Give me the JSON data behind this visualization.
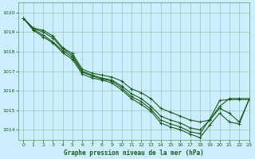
{
  "title": "Graphe pression niveau de la mer (hPa)",
  "bg_color": "#cceeff",
  "grid_color": "#5a9a5a",
  "line_color": "#1a5c1a",
  "label_bg": "#5a9a5a",
  "xlim": [
    -0.5,
    23
  ],
  "ylim": [
    1013.5,
    1020.5
  ],
  "yticks": [
    1014,
    1015,
    1016,
    1017,
    1018,
    1019,
    1020
  ],
  "xticks": [
    0,
    1,
    2,
    3,
    4,
    5,
    6,
    7,
    8,
    9,
    10,
    11,
    12,
    13,
    14,
    15,
    16,
    17,
    18,
    19,
    20,
    21,
    22,
    23
  ],
  "series": [
    [
      1019.7,
      1019.2,
      1019.1,
      1018.8,
      1018.2,
      1017.9,
      1017.1,
      1016.9,
      1016.8,
      1016.7,
      1016.5,
      1016.1,
      1015.9,
      1015.6,
      1015.1,
      1014.9,
      1014.7,
      1014.5,
      1014.4,
      1014.5,
      1015.2,
      1015.6,
      1015.6,
      1015.6
    ],
    [
      1019.7,
      1019.2,
      1019.0,
      1018.7,
      1018.15,
      1017.8,
      1017.0,
      1016.8,
      1016.65,
      1016.55,
      1016.25,
      1015.85,
      1015.6,
      1015.2,
      1014.7,
      1014.5,
      1014.35,
      1014.1,
      1014.0,
      1014.5,
      1015.1,
      1014.85,
      1014.4,
      1015.55
    ],
    [
      1019.7,
      1019.15,
      1018.85,
      1018.5,
      1018.05,
      1017.7,
      1016.95,
      1016.75,
      1016.6,
      1016.5,
      1016.15,
      1015.7,
      1015.45,
      1015.05,
      1014.5,
      1014.3,
      1014.15,
      1013.9,
      1013.8,
      1014.55,
      1015.5,
      1015.55,
      1015.55,
      1015.55
    ],
    [
      1019.7,
      1019.1,
      1018.75,
      1018.45,
      1017.95,
      1017.6,
      1016.85,
      1016.65,
      1016.55,
      1016.4,
      1016.05,
      1015.6,
      1015.3,
      1014.95,
      1014.35,
      1014.15,
      1014.0,
      1013.78,
      1013.6,
      1014.25,
      1014.85,
      1014.4,
      1014.3,
      1015.55
    ]
  ]
}
